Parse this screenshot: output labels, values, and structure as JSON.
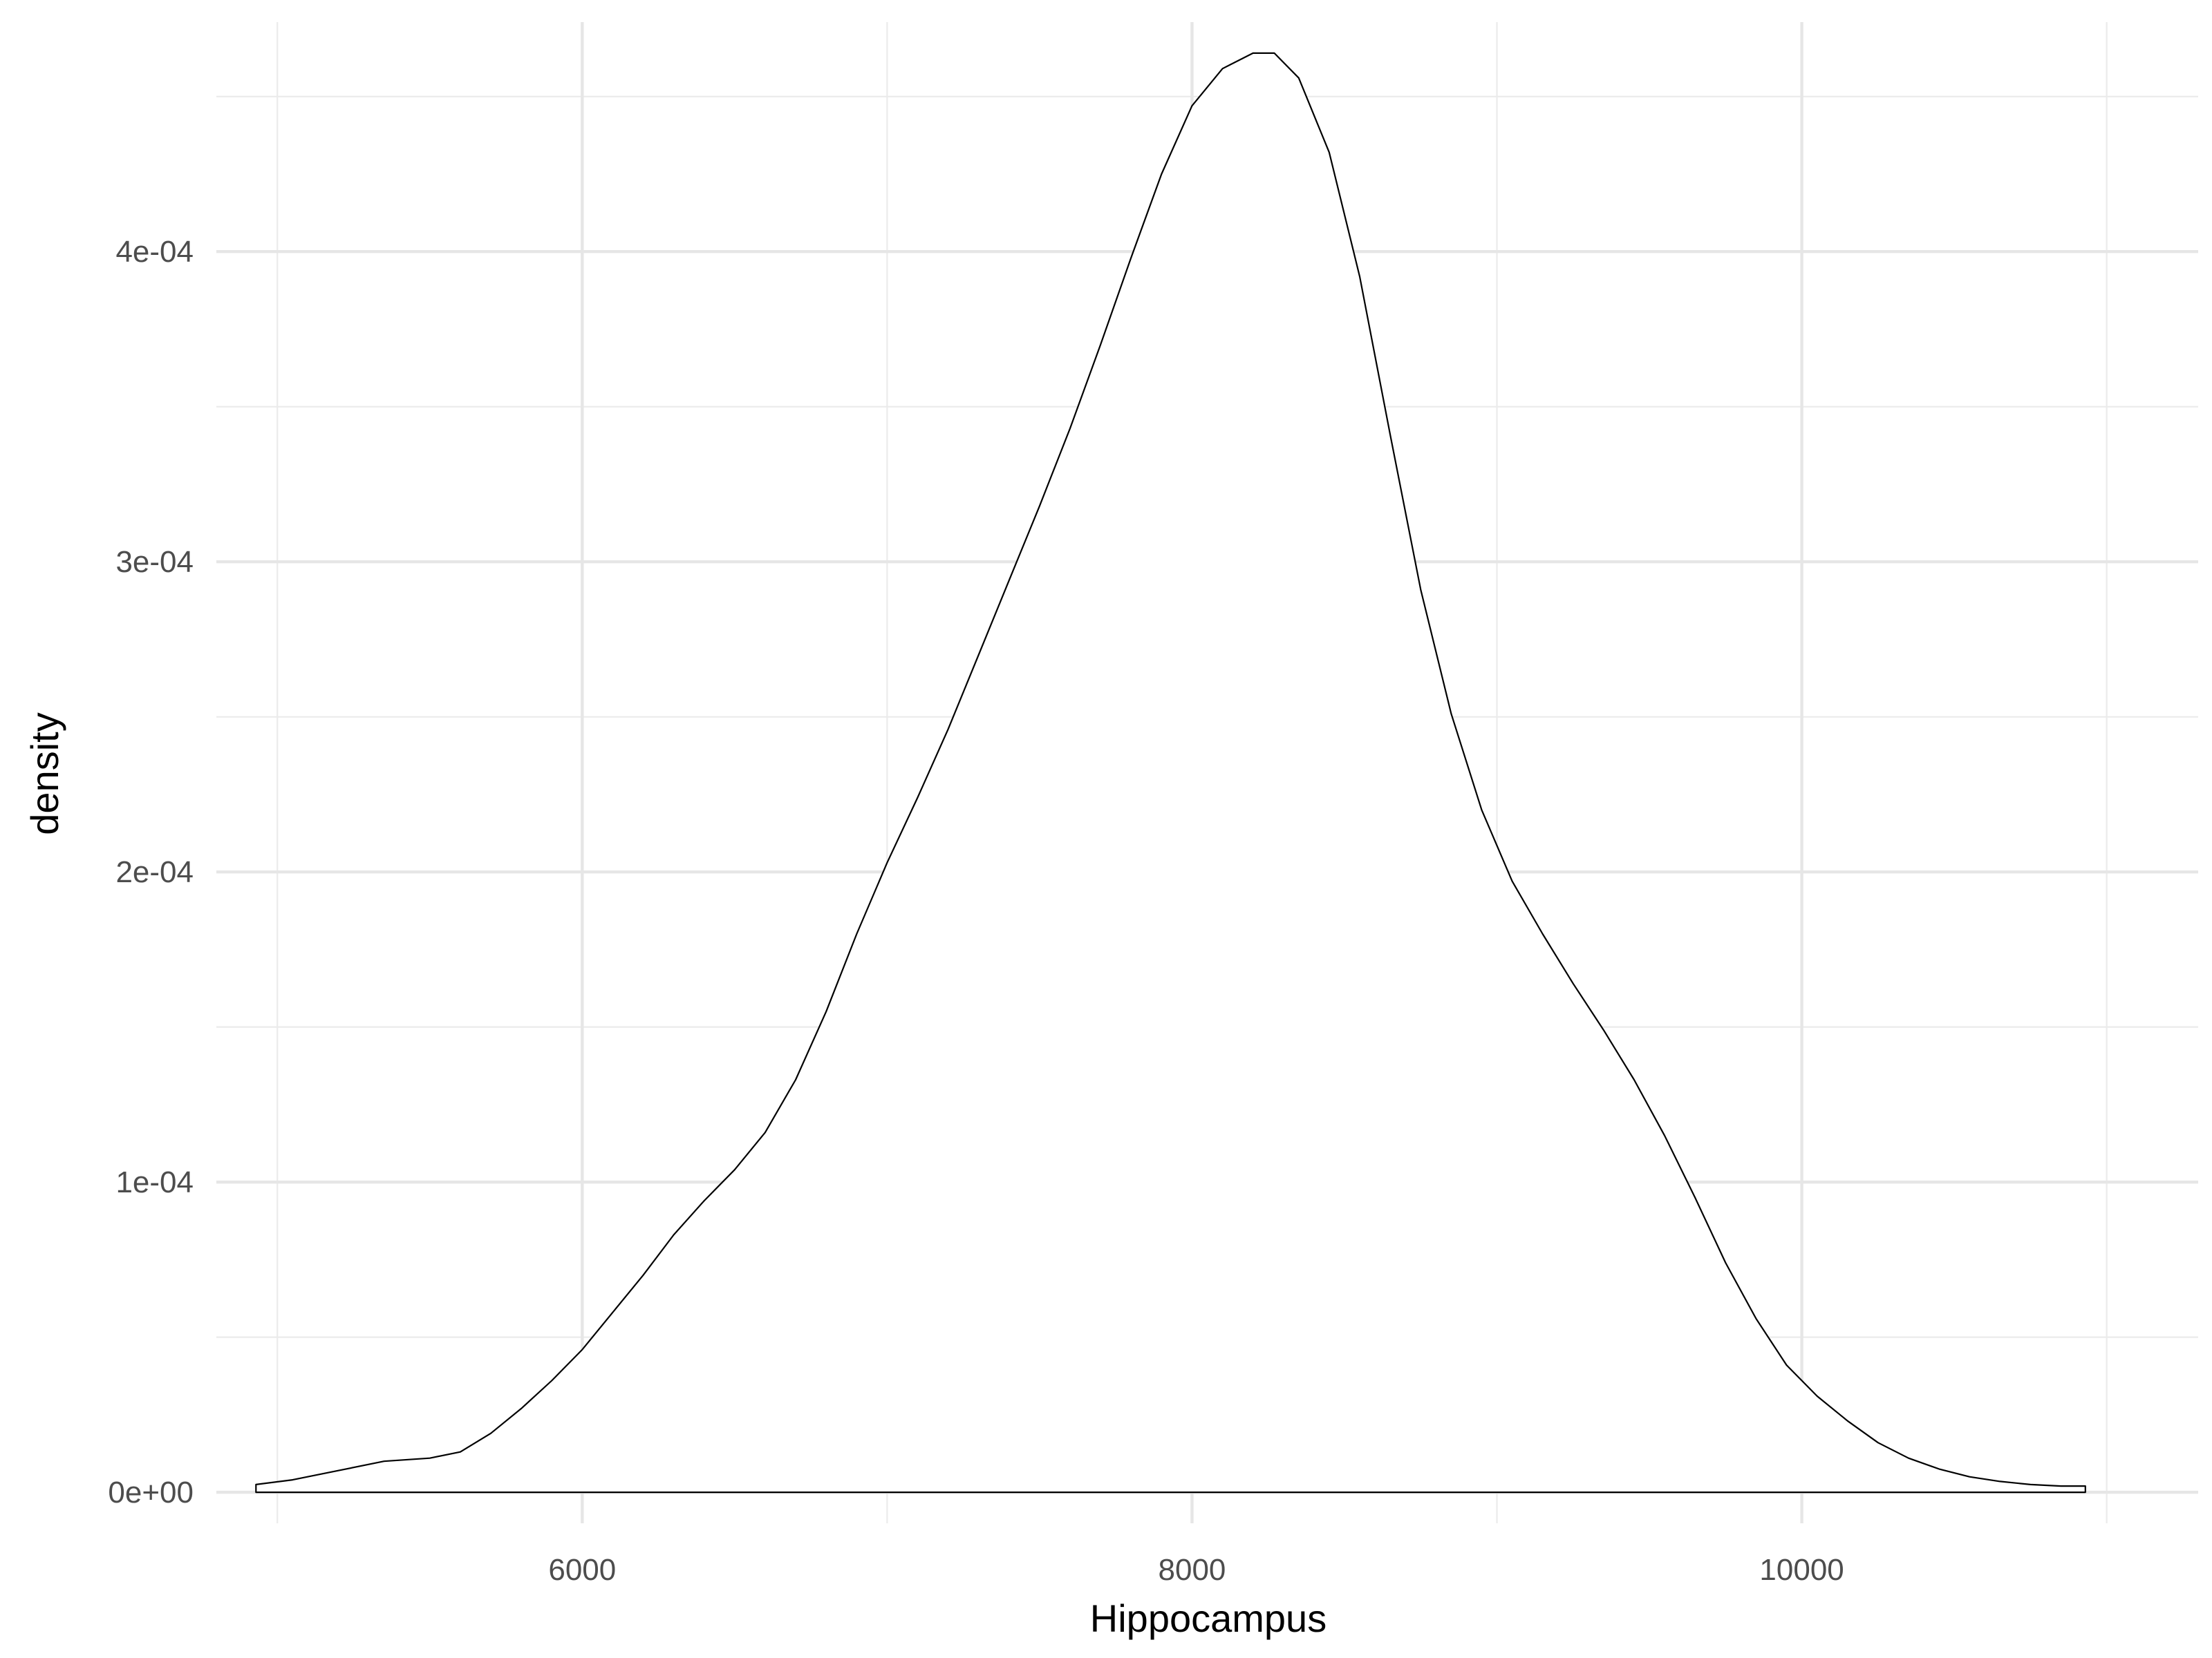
{
  "chart_data": {
    "type": "area",
    "title": "",
    "xlabel": "Hippocampus",
    "ylabel": "density",
    "xlim": [
      4800,
      11300
    ],
    "ylim": [
      -1e-05,
      0.000474
    ],
    "x_ticks": [
      {
        "value": 6000,
        "label": "6000"
      },
      {
        "value": 8000,
        "label": "8000"
      },
      {
        "value": 10000,
        "label": "10000"
      }
    ],
    "x_minor_ticks": [
      5000,
      7000,
      9000,
      11000
    ],
    "y_ticks": [
      {
        "value": 0,
        "label": "0e+00"
      },
      {
        "value": 0.0001,
        "label": "1e-04"
      },
      {
        "value": 0.0002,
        "label": "2e-04"
      },
      {
        "value": 0.0003,
        "label": "3e-04"
      },
      {
        "value": 0.0004,
        "label": "4e-04"
      }
    ],
    "y_minor_ticks": [
      5e-05,
      0.00015,
      0.00025,
      0.00035,
      0.00045
    ],
    "grid": true,
    "legend": "none",
    "fill": "#ffffff",
    "line_color": "#000000",
    "series": [
      {
        "x": [
          4930,
          5050,
          5200,
          5350,
          5500,
          5600,
          5700,
          5800,
          5900,
          6000,
          6100,
          6200,
          6300,
          6400,
          6500,
          6600,
          6700,
          6800,
          6900,
          7000,
          7100,
          7200,
          7300,
          7400,
          7500,
          7600,
          7700,
          7800,
          7900,
          8000,
          8100,
          8200,
          8270,
          8350,
          8450,
          8550,
          8650,
          8750,
          8850,
          8950,
          9050,
          9150,
          9250,
          9350,
          9450,
          9550,
          9650,
          9750,
          9850,
          9950,
          10050,
          10150,
          10250,
          10350,
          10450,
          10550,
          10650,
          10750,
          10850,
          10930
        ],
        "y": [
          2.5e-06,
          4e-06,
          7e-06,
          1e-05,
          1.1e-05,
          1.3e-05,
          1.9e-05,
          2.7e-05,
          3.6e-05,
          4.6e-05,
          5.8e-05,
          7e-05,
          8.3e-05,
          9.4e-05,
          0.000104,
          0.000116,
          0.000133,
          0.000155,
          0.00018,
          0.000203,
          0.000224,
          0.000246,
          0.00027,
          0.000294,
          0.000318,
          0.000343,
          0.00037,
          0.000398,
          0.000425,
          0.000447,
          0.000459,
          0.000464,
          0.000464,
          0.000456,
          0.000432,
          0.000392,
          0.000341,
          0.000291,
          0.000251,
          0.00022,
          0.000197,
          0.00018,
          0.000164,
          0.000149,
          0.000133,
          0.000115,
          9.5e-05,
          7.4e-05,
          5.6e-05,
          4.1e-05,
          3.1e-05,
          2.3e-05,
          1.6e-05,
          1.1e-05,
          7.5e-06,
          5e-06,
          3.5e-06,
          2.5e-06,
          2e-06,
          2e-06
        ]
      }
    ]
  }
}
